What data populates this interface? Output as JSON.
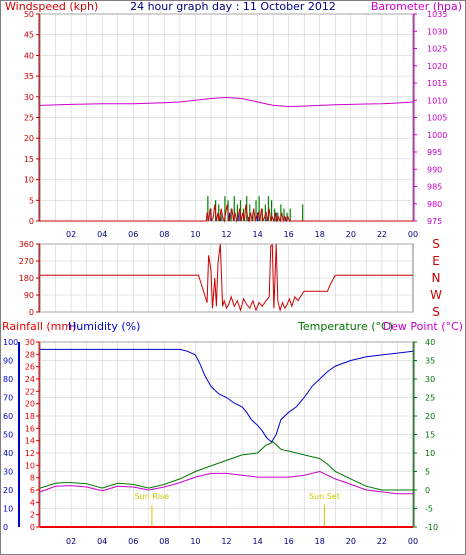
{
  "colors": {
    "wind": "#cc0000",
    "gust": "#008000",
    "wind_avg": "#0000cc",
    "baro": "#cc00cc",
    "dir": "#cc0000",
    "rain": "#ee0000",
    "humidity": "#0000cc",
    "temp": "#007700",
    "dew": "#cc00cc",
    "time_label": "#000080",
    "sun": "#cccc00",
    "grid": "#c8c8c8"
  },
  "chart_data": [
    {
      "type": "line",
      "title": "24 hour graph day : 11 October 2012",
      "y_left_label": "Windspeed (kph)",
      "y_right_label": "Barometer (hpa)",
      "y_left_ticks": [
        "0",
        "5",
        "10",
        "15",
        "20",
        "25",
        "30",
        "35",
        "40",
        "45",
        "50"
      ],
      "y_right_ticks": [
        "975",
        "980",
        "985",
        "990",
        "995",
        "1000",
        "1005",
        "1010",
        "1015",
        "1020",
        "1025",
        "1030",
        "1035"
      ],
      "ylim_left": [
        0,
        50
      ],
      "ylim_right": [
        975,
        1035
      ],
      "x_ticks": [
        "02",
        "04",
        "06",
        "08",
        "10",
        "12",
        "14",
        "16",
        "18",
        "20",
        "22",
        "00"
      ],
      "xlim": [
        0,
        24
      ],
      "grid": true,
      "barometer": {
        "x": [
          0,
          2,
          4,
          6,
          8,
          9,
          10,
          11,
          12,
          13,
          14,
          15,
          16,
          17,
          18,
          19,
          20,
          21,
          22,
          23,
          24
        ],
        "y": [
          1008.5,
          1008.8,
          1009,
          1009,
          1009.3,
          1009.5,
          1010,
          1010.5,
          1010.8,
          1010.5,
          1009.5,
          1008.5,
          1008.2,
          1008.3,
          1008.5,
          1008.7,
          1008.8,
          1008.9,
          1009,
          1009.2,
          1009.5
        ]
      },
      "wind_speed": {
        "x": [
          0,
          10.7,
          10.75,
          10.85,
          10.95,
          11.05,
          11.15,
          11.25,
          11.35,
          11.45,
          11.55,
          11.65,
          11.75,
          11.85,
          11.95,
          12.05,
          12.15,
          12.25,
          12.35,
          12.45,
          12.55,
          12.65,
          12.75,
          12.85,
          12.95,
          13.05,
          13.15,
          13.25,
          13.35,
          13.45,
          13.55,
          13.65,
          13.75,
          13.85,
          13.95,
          14.05,
          14.15,
          14.25,
          14.35,
          14.45,
          14.55,
          14.65,
          14.75,
          14.85,
          14.95,
          15.05,
          15.15,
          15.25,
          15.35,
          15.45,
          15.55,
          15.65,
          15.75,
          15.85,
          15.95,
          16.05,
          16.2,
          24
        ],
        "y": [
          0,
          0,
          2,
          0,
          3,
          0,
          1,
          4,
          0,
          2,
          0,
          3,
          1,
          0,
          2,
          4,
          0,
          1,
          3,
          0,
          2,
          0,
          1,
          3,
          0,
          2,
          0,
          4,
          1,
          0,
          2,
          0,
          3,
          0,
          1,
          2,
          0,
          3,
          0,
          1,
          2,
          0,
          3,
          0,
          1,
          0,
          2,
          0,
          1,
          0,
          2,
          0,
          1,
          0,
          1,
          0,
          0,
          0
        ]
      },
      "gust_bars": {
        "x": [
          10.8,
          11.0,
          11.3,
          11.5,
          11.7,
          11.9,
          12.1,
          12.3,
          12.5,
          12.7,
          12.9,
          13.1,
          13.3,
          13.5,
          13.7,
          13.9,
          14.1,
          14.3,
          14.5,
          14.7,
          14.9,
          15.1,
          15.3,
          15.5,
          15.7,
          15.9,
          16.1,
          16.9
        ],
        "y": [
          6,
          3,
          5,
          4,
          2,
          6,
          5,
          3,
          6,
          4,
          5,
          3,
          6,
          4,
          2,
          5,
          6,
          3,
          4,
          6,
          5,
          3,
          2,
          4,
          3,
          2,
          3,
          4
        ]
      },
      "wind_avg_bars": {
        "x": [
          11.0,
          11.6,
          12.2,
          12.8,
          13.4,
          14.0,
          14.6,
          15.2,
          15.8
        ],
        "y": [
          2,
          1,
          2,
          2,
          1,
          2,
          1,
          2,
          1
        ]
      }
    },
    {
      "type": "line",
      "y_left_ticks": [
        "0",
        "90",
        "180",
        "270",
        "360"
      ],
      "y_right_ticks": [
        "S",
        "E",
        "N",
        "W",
        "S"
      ],
      "ylim": [
        0,
        360
      ],
      "xlim": [
        0,
        24
      ],
      "x_ticks": [],
      "grid": true,
      "wind_direction": {
        "x": [
          0,
          10.2,
          10.6,
          10.75,
          10.85,
          11.0,
          11.1,
          11.25,
          11.35,
          11.45,
          11.6,
          11.75,
          11.85,
          12.0,
          12.15,
          12.3,
          12.5,
          12.7,
          12.9,
          13.1,
          13.3,
          13.5,
          13.7,
          13.9,
          14.1,
          14.3,
          14.55,
          14.75,
          14.85,
          14.95,
          15.05,
          15.2,
          15.3,
          15.45,
          15.6,
          15.75,
          15.9,
          16.05,
          16.2,
          16.4,
          16.6,
          16.9,
          17.0,
          18.5,
          18.7,
          19.0,
          24
        ],
        "y": [
          195,
          195,
          90,
          50,
          300,
          220,
          20,
          180,
          30,
          260,
          360,
          30,
          60,
          20,
          40,
          80,
          30,
          60,
          10,
          70,
          40,
          20,
          60,
          10,
          50,
          30,
          60,
          80,
          350,
          355,
          20,
          360,
          60,
          10,
          50,
          20,
          40,
          70,
          30,
          80,
          60,
          100,
          110,
          110,
          150,
          195,
          195
        ]
      }
    },
    {
      "type": "line",
      "y_far_left_label": "Rainfall (mm)",
      "y_left_label": "Humidity (%)",
      "y_right_label": "Temperature (°C)",
      "y_far_right_label": "Dew Point (°C)",
      "y_far_left_ticks": [
        "0",
        "10",
        "20",
        "30",
        "40",
        "50",
        "60",
        "70",
        "80",
        "90",
        "100"
      ],
      "y_left_ticks": [
        "0",
        "2",
        "4",
        "6",
        "8",
        "10",
        "12",
        "14",
        "16",
        "18",
        "20",
        "22",
        "24",
        "26",
        "28",
        "30"
      ],
      "y_right_ticks": [
        "-10",
        "-5",
        "0",
        "5",
        "10",
        "15",
        "20",
        "25",
        "30",
        "35",
        "40"
      ],
      "ylim_humidity": [
        0,
        100
      ],
      "ylim_temp": [
        -10,
        40
      ],
      "x_ticks": [
        "02",
        "04",
        "06",
        "08",
        "10",
        "12",
        "14",
        "16",
        "18",
        "20",
        "22",
        "00"
      ],
      "xlim": [
        0,
        24
      ],
      "grid": true,
      "rainfall": {
        "x": [
          0,
          24
        ],
        "y": [
          0,
          0
        ]
      },
      "humidity": {
        "x": [
          0,
          2,
          4,
          6,
          8,
          9,
          9.5,
          10,
          10.3,
          10.6,
          11,
          11.5,
          12,
          12.5,
          13,
          13.3,
          13.6,
          14,
          14.3,
          14.6,
          14.9,
          15.2,
          15.5,
          16,
          16.5,
          17,
          17.5,
          18,
          18.5,
          19,
          20,
          21,
          22,
          23,
          24
        ],
        "y": [
          96,
          96,
          96,
          96,
          96,
          96,
          95,
          93,
          88,
          82,
          76,
          72,
          70,
          67,
          65,
          62,
          58,
          55,
          52,
          48,
          46,
          50,
          58,
          62,
          65,
          70,
          76,
          80,
          84,
          87,
          90,
          92,
          93,
          94,
          95
        ]
      },
      "temperature": {
        "x": [
          0,
          1,
          1.5,
          2,
          3,
          4,
          5,
          6,
          7,
          8,
          9,
          10,
          11,
          12,
          13,
          14,
          14.5,
          15,
          15.5,
          16,
          17,
          18,
          18.5,
          19,
          20,
          21,
          22,
          23,
          24
        ],
        "y": [
          0.5,
          1.8,
          2,
          2,
          1.7,
          0.5,
          1.8,
          1.5,
          0.5,
          1.5,
          3,
          5,
          6.5,
          8,
          9.5,
          10,
          12,
          13,
          11,
          10.5,
          9.5,
          8.5,
          7,
          5,
          3,
          1,
          0,
          0,
          0
        ]
      },
      "dew_point": {
        "x": [
          0,
          1,
          2,
          3,
          4,
          5,
          6,
          7,
          8,
          9,
          10,
          11,
          12,
          13,
          14,
          15,
          16,
          17,
          18,
          19,
          20,
          21,
          22,
          23,
          24
        ],
        "y": [
          -0.5,
          1,
          1.2,
          0.8,
          -0.2,
          1,
          0.8,
          0,
          0.8,
          2,
          3.5,
          4.5,
          4.5,
          4,
          3.5,
          3.5,
          3.5,
          4,
          5,
          3,
          1.5,
          0,
          -0.5,
          -1,
          -1
        ]
      },
      "annotations": [
        {
          "text": "Sun Rise",
          "x": 7.2
        },
        {
          "text": "Sun Set",
          "x": 18.3
        }
      ]
    }
  ]
}
